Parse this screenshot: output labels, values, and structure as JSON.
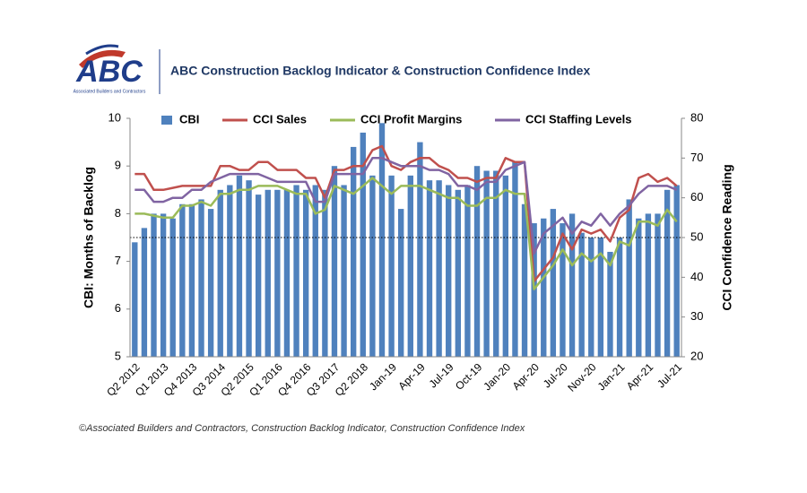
{
  "header": {
    "logo_text": "ABC",
    "logo_subtext": "Associated Builders and Contractors",
    "title": "ABC Construction Backlog Indicator & Construction Confidence Index"
  },
  "chart_data": {
    "type": "combo",
    "y_label": "CBI: Months of Backlog",
    "y2_label": "CCI Confidence Reading",
    "categories": [
      "Q2 2012",
      null,
      null,
      "Q1 2013",
      null,
      null,
      "Q4 2013",
      null,
      null,
      "Q3 2014",
      null,
      null,
      "Q2 2015",
      null,
      null,
      "Q1 2016",
      null,
      null,
      "Q4 2016",
      null,
      null,
      "Q3 2017",
      null,
      null,
      "Q2 2018",
      null,
      null,
      "Jan-19",
      null,
      null,
      "Apr-19",
      null,
      null,
      "Jul-19",
      null,
      null,
      "Oct-19",
      null,
      null,
      "Jan-20",
      null,
      null,
      "Apr-20",
      null,
      null,
      "Jul-20",
      null,
      null,
      "Nov-20",
      null,
      null,
      "Jan-21",
      null,
      null,
      "Apr-21",
      null,
      null,
      "Jul-21"
    ],
    "series": [
      {
        "name": "CBI",
        "type": "bar",
        "axis": "y",
        "color": "#4f81bd",
        "values": [
          7.4,
          7.7,
          8.0,
          8.0,
          7.9,
          8.2,
          8.2,
          8.3,
          8.1,
          8.5,
          8.6,
          8.8,
          8.7,
          8.4,
          8.5,
          8.5,
          8.5,
          8.6,
          8.5,
          8.6,
          8.5,
          9.0,
          8.6,
          9.4,
          9.7,
          8.8,
          9.9,
          8.8,
          8.1,
          8.8,
          9.5,
          8.7,
          8.7,
          8.6,
          8.5,
          8.6,
          9.0,
          8.9,
          8.9,
          8.8,
          9.1,
          8.2,
          7.8,
          7.9,
          8.1,
          7.8,
          8.0,
          7.6,
          7.5,
          7.5,
          7.2,
          7.5,
          8.3,
          7.9,
          8.0,
          8.0,
          8.5,
          8.6
        ]
      },
      {
        "name": "CCI Sales",
        "type": "line",
        "axis": "y2",
        "color": "#c0504d",
        "values": [
          66,
          66,
          62,
          62,
          62.5,
          63,
          63,
          63,
          63,
          68,
          68,
          67,
          67,
          69,
          69,
          67,
          67,
          67,
          65,
          65,
          60,
          67,
          67,
          68,
          68,
          72,
          73,
          68,
          67,
          69,
          70,
          70,
          68,
          67,
          65,
          65,
          64,
          65,
          65,
          70,
          69,
          69,
          39,
          42,
          45,
          51,
          47,
          52,
          51,
          52,
          49,
          55,
          57,
          65,
          66,
          64,
          65,
          63
        ]
      },
      {
        "name": "CCI Profit Margins",
        "type": "line",
        "axis": "y2",
        "color": "#9bbb59",
        "values": [
          56,
          56,
          55.5,
          55,
          55,
          58,
          58,
          59,
          58,
          61,
          61,
          62,
          62,
          63,
          63,
          63,
          62,
          61,
          61,
          56,
          57,
          63,
          62,
          61,
          63,
          65,
          63,
          61,
          63,
          63,
          63,
          62,
          61,
          60,
          60,
          58,
          58,
          60,
          60,
          62,
          61,
          61,
          37,
          40,
          43,
          47,
          43,
          46,
          44,
          46,
          43,
          49,
          48,
          54,
          54,
          53,
          57,
          54
        ]
      },
      {
        "name": "CCI Staffing Levels",
        "type": "line",
        "axis": "y2",
        "color": "#8064a2",
        "values": [
          62,
          62,
          59,
          59,
          60,
          60,
          62,
          62,
          64,
          65,
          66,
          66,
          66,
          66,
          65,
          64,
          64,
          64,
          64,
          59,
          59,
          66,
          66,
          66,
          66,
          70,
          70,
          69,
          68,
          68,
          68,
          67,
          67,
          66,
          63,
          63,
          62,
          64,
          64,
          67,
          68,
          69,
          46,
          51,
          53,
          55,
          51,
          54,
          53,
          56,
          53,
          56,
          58,
          61,
          63,
          63,
          63,
          62
        ]
      }
    ],
    "ylim": [
      5,
      10
    ],
    "yticks": [
      5,
      6,
      7,
      8,
      9,
      10
    ],
    "y2lim": [
      20,
      80
    ],
    "y2ticks": [
      20,
      30,
      40,
      50,
      60,
      70,
      80
    ],
    "reference_line": {
      "axis": "y2",
      "value": 50
    },
    "legend": "top"
  },
  "footer": "©Associated Builders and Contractors, Construction Backlog Indicator, Construction Confidence Index"
}
